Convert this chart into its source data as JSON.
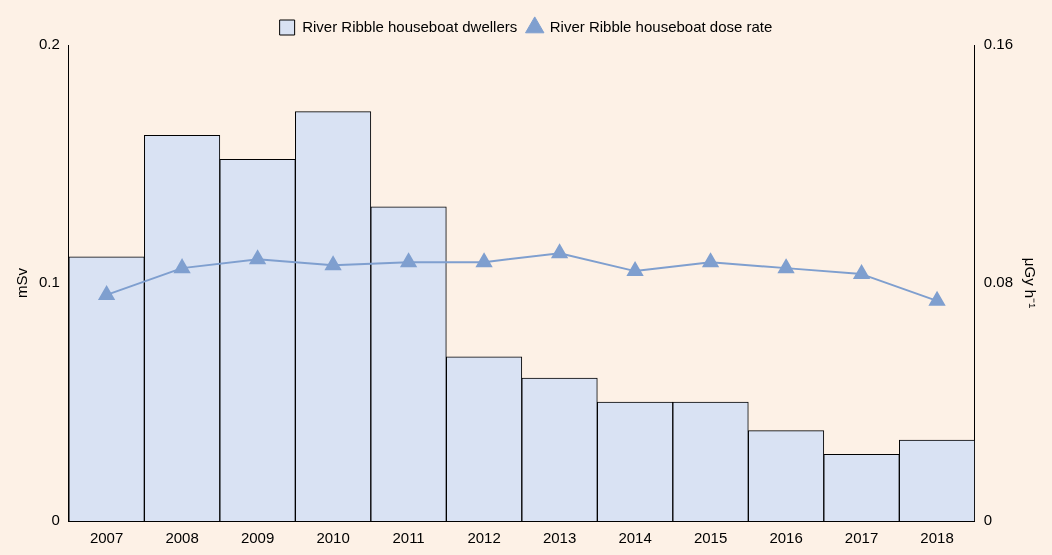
{
  "chart_data": {
    "type": "bar",
    "categories": [
      "2007",
      "2008",
      "2009",
      "2010",
      "2011",
      "2012",
      "2013",
      "2014",
      "2015",
      "2016",
      "2017",
      "2018"
    ],
    "series": [
      {
        "name": "River Ribble houseboat dwellers",
        "color": "#d9e2f3",
        "values": [
          0.111,
          0.162,
          0.152,
          0.172,
          0.132,
          0.069,
          0.06,
          0.05,
          0.05,
          0.038,
          0.028,
          0.034
        ]
      },
      {
        "name": "River Ribble houseboat dose rate",
        "type": "line",
        "axis": "y2",
        "color": "#7f9fcf",
        "values": [
          0.076,
          0.085,
          0.088,
          0.086,
          0.087,
          0.087,
          0.09,
          0.084,
          0.087,
          0.085,
          0.083,
          0.074
        ]
      }
    ],
    "ylabel": "mSv",
    "y2label": "μGy h⁻¹",
    "ylim": [
      0,
      0.2
    ],
    "yticks": [
      0,
      0.1,
      0.2
    ],
    "y2lim": [
      0,
      0.16
    ],
    "y2ticks": [
      0,
      0.08,
      0.16
    ],
    "grid": false,
    "legend": "top",
    "marker": "triangle",
    "line_style": "solid"
  }
}
